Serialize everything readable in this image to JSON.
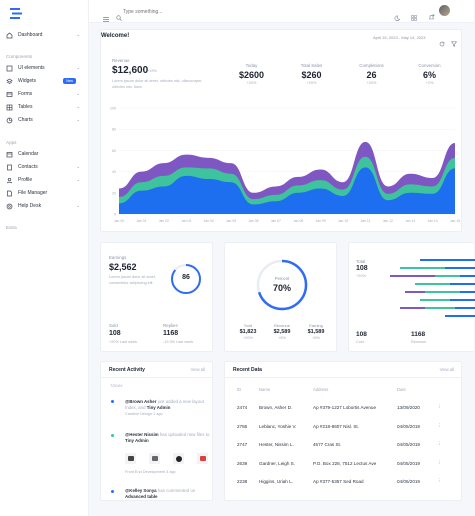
{
  "colors": {
    "accent": "#2f6cf5",
    "purple": "#7e57c2",
    "teal": "#3ec39d",
    "blue": "#1e6ff0"
  },
  "search": {
    "placeholder": "Type something..."
  },
  "sidebar": {
    "dashboard": "Dashboard",
    "components_header": "Components",
    "items": [
      "UI elements",
      "Widgets",
      "Forms",
      "Tables",
      "Charts"
    ],
    "widgets_badge": "New",
    "apps_header": "Apps",
    "apps": [
      "Calendar",
      "Contacts",
      "Profile",
      "File Manager",
      "Help Desk"
    ],
    "extra_header": "Extra"
  },
  "welcome": {
    "title": "Welcome!",
    "date_range": "April 15, 2023 - May 14, 2023",
    "revenue_label": "Revenue",
    "revenue_value": "$12,600",
    "revenue_change": "+19%",
    "revenue_desc": "Lorem ipsum dolor sit amet, ultricies nisi, ullamcorper, ultricies nisi. Nam",
    "stats": [
      {
        "label": "Today",
        "value": "$2600",
        "change": "+20%"
      },
      {
        "label": "Total Sales",
        "value": "$260",
        "change": "+20%"
      },
      {
        "label": "Completions",
        "value": "26",
        "change": "+20%"
      },
      {
        "label": "Conversion",
        "value": "6%",
        "change": "+2%"
      }
    ]
  },
  "chart_data": {
    "type": "area",
    "x": [
      "Jan 00",
      "Jan 01",
      "Jan 02",
      "Jan 03",
      "Jan 04",
      "Jan 05",
      "Jan 06",
      "Jan 07",
      "Jan 08",
      "Jan 09",
      "Jan 10",
      "Jan 11",
      "Jan 12",
      "Jan 13",
      "Jan 14",
      "Jan 15"
    ],
    "ylim": [
      0,
      100
    ],
    "y_ticks": [
      "100",
      "80",
      "60",
      "40",
      "20",
      "0"
    ],
    "series": [
      {
        "values": [
          10,
          22,
          26,
          36,
          33,
          30,
          9,
          12,
          20,
          24,
          17,
          44,
          13,
          20,
          19,
          43
        ]
      },
      {
        "values": [
          6,
          8,
          10,
          8,
          10,
          8,
          5,
          6,
          7,
          8,
          6,
          10,
          6,
          8,
          7,
          10
        ]
      },
      {
        "values": [
          8,
          10,
          12,
          12,
          10,
          10,
          6,
          8,
          8,
          10,
          7,
          14,
          7,
          10,
          8,
          14
        ]
      }
    ]
  },
  "earnings": {
    "label": "Earnings",
    "value": "$2,562",
    "desc": "Lorem ipsum dolor sit amet, consectetur adipiscing elit.",
    "gauge_value": "86",
    "gauge_fraction": 0.86,
    "left_label": "Sold",
    "left_value": "108",
    "left_sub": "+20% Last week",
    "right_label": "Replies",
    "right_value": "1168",
    "right_sub": "-19.3% Last week"
  },
  "percent": {
    "label": "Percent",
    "value": "70%",
    "fraction": 0.7,
    "stats": [
      {
        "label": "Sold",
        "value": "$1,823",
        "sub": "+20%"
      },
      {
        "label": "Revenue",
        "value": "$2,589",
        "sub": "+8%"
      },
      {
        "label": "Earning",
        "value": "$1,589",
        "sub": "+8%"
      }
    ]
  },
  "bars_card": {
    "top_label": "Total",
    "top_value": "108",
    "top_sub": "+20%",
    "bottom_left_value": "108",
    "bottom_left_label": "Cost",
    "bottom_right_value": "1168",
    "bottom_right_label": "Revenue",
    "bars": [
      {
        "blue": 0.55,
        "teal": 0.0,
        "purple": 0.0
      },
      {
        "blue": 0.3,
        "teal": 0.45,
        "purple": 0.0
      },
      {
        "blue": 0.15,
        "teal": 0.25,
        "purple": 0.45
      },
      {
        "blue": 0.25,
        "teal": 0.35,
        "purple": 0.0
      },
      {
        "blue": 0.15,
        "teal": 0.35,
        "purple": 0.2
      },
      {
        "blue": 0.25,
        "teal": 0.3,
        "purple": 0.0
      },
      {
        "blue": 0.2,
        "teal": 0.3,
        "purple": 0.25
      },
      {
        "blue": 0.3,
        "teal": 0.0,
        "purple": 0.0
      }
    ]
  },
  "activity": {
    "title": "Recent Activity",
    "view_all": "View all",
    "day": "TODAY",
    "items": [
      {
        "user": "@Brown Asher",
        "action": "just added a new layout",
        "extra": "Index, and",
        "who": "Tiny Admin",
        "meta": "Creative Design",
        "time": "1 ago"
      },
      {
        "user": "@Hester Nissim",
        "action": "has uploaded new files",
        "extra": "to",
        "who": "Tiny Admin",
        "meta": "Front End Development",
        "time": "3 ago"
      },
      {
        "user": "@Kelley Sonya",
        "action": "has commented",
        "extra": "on",
        "who": "Advanced table",
        "meta": "",
        "time": ""
      }
    ]
  },
  "recent": {
    "title": "Recent Data",
    "view_all": "View all",
    "columns": [
      "ID",
      "Name",
      "Address",
      "Date"
    ],
    "rows": [
      {
        "id": "2474",
        "name": "Brown, Asher D.",
        "address": "Ap #379-1227 Lobortis Avenue",
        "date": "13/09/2020"
      },
      {
        "id": "2786",
        "name": "Leblanc, Yoshie V.",
        "address": "Ap #218-8607 Nisl. St.",
        "date": "04/05/2019"
      },
      {
        "id": "2747",
        "name": "Hester, Nissim L.",
        "address": "4577 Cras St.",
        "date": "04/05/2019"
      },
      {
        "id": "2639",
        "name": "Gardner, Leigh S.",
        "address": "P.O. Box 228, 7512 Lectus Ave",
        "date": "04/05/2019"
      },
      {
        "id": "2238",
        "name": "Higgins, Uriah L.",
        "address": "Ap #377-5357 Sed Road",
        "date": "04/05/2019"
      }
    ]
  }
}
